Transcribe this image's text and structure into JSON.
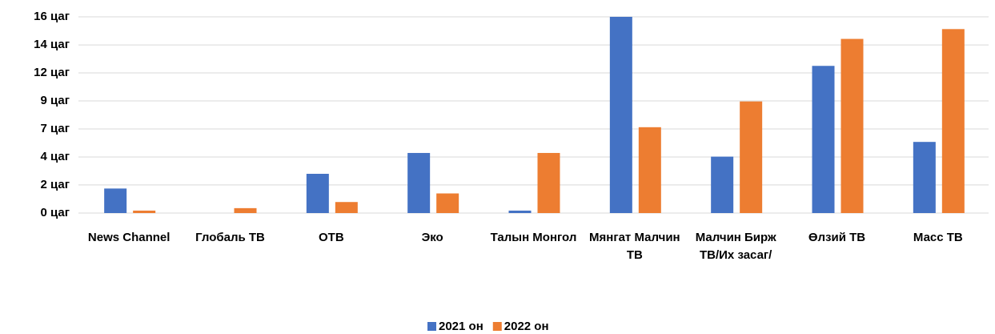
{
  "chart_data": {
    "type": "bar",
    "categories": [
      "News Channel",
      "Глобаль ТВ",
      "ОТВ",
      "Эко",
      "Талын Монгол",
      "Мянгат Малчин ТВ",
      "Малчин Бирж ТВ/Их засаг/",
      "Өлзий ТВ",
      "Масс ТВ"
    ],
    "series": [
      {
        "name": "2021 он",
        "color": "#4472c4",
        "values": [
          2.0,
          0,
          3.2,
          4.9,
          0.2,
          16.0,
          4.6,
          12.0,
          5.8
        ]
      },
      {
        "name": "2022 он",
        "color": "#ed7d31",
        "values": [
          0.2,
          0.4,
          0.9,
          1.6,
          4.9,
          7.0,
          9.1,
          14.2,
          15.0
        ]
      }
    ],
    "ylim": [
      0,
      16
    ],
    "yticks": [
      {
        "value": 0,
        "label": "0 цаг"
      },
      {
        "value": 2.29,
        "label": "2 цаг"
      },
      {
        "value": 4.57,
        "label": "4 цаг"
      },
      {
        "value": 6.86,
        "label": "7 цаг"
      },
      {
        "value": 9.14,
        "label": "9 цаг"
      },
      {
        "value": 11.43,
        "label": "12 цаг"
      },
      {
        "value": 13.71,
        "label": "14 цаг"
      },
      {
        "value": 16,
        "label": "16 цаг"
      }
    ],
    "grid": true,
    "legend": "bottom"
  }
}
